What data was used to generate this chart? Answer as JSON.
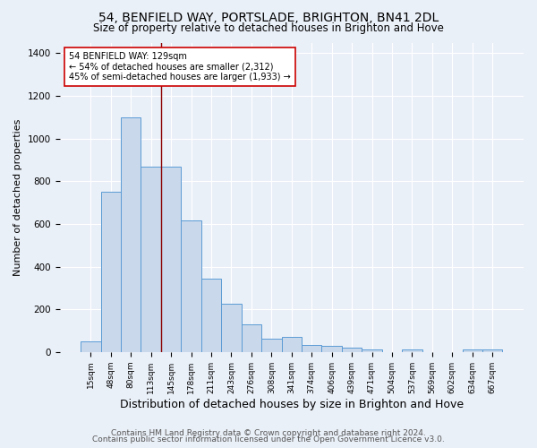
{
  "title1": "54, BENFIELD WAY, PORTSLADE, BRIGHTON, BN41 2DL",
  "title2": "Size of property relative to detached houses in Brighton and Hove",
  "xlabel": "Distribution of detached houses by size in Brighton and Hove",
  "ylabel": "Number of detached properties",
  "footer1": "Contains HM Land Registry data © Crown copyright and database right 2024.",
  "footer2": "Contains public sector information licensed under the Open Government Licence v3.0.",
  "bar_labels": [
    "15sqm",
    "48sqm",
    "80sqm",
    "113sqm",
    "145sqm",
    "178sqm",
    "211sqm",
    "243sqm",
    "276sqm",
    "308sqm",
    "341sqm",
    "374sqm",
    "406sqm",
    "439sqm",
    "471sqm",
    "504sqm",
    "537sqm",
    "569sqm",
    "602sqm",
    "634sqm",
    "667sqm"
  ],
  "bar_values": [
    50,
    750,
    1100,
    870,
    870,
    615,
    345,
    225,
    130,
    62,
    70,
    32,
    30,
    22,
    14,
    0,
    10,
    0,
    0,
    10,
    10
  ],
  "bar_color": "#c9d9eb",
  "bar_edge_color": "#5b9bd5",
  "vline_x": 3.5,
  "vline_color": "#8b0000",
  "annotation_text": "54 BENFIELD WAY: 129sqm\n← 54% of detached houses are smaller (2,312)\n45% of semi-detached houses are larger (1,933) →",
  "annotation_box_color": "#ffffff",
  "annotation_box_edge": "#cc0000",
  "ylim": [
    0,
    1450
  ],
  "yticks": [
    0,
    200,
    400,
    600,
    800,
    1000,
    1200,
    1400
  ],
  "bg_color": "#eaf0f8",
  "plot_bg_color": "#eaf0f8",
  "grid_color": "#ffffff",
  "title1_fontsize": 10,
  "title2_fontsize": 8.5,
  "xlabel_fontsize": 9,
  "ylabel_fontsize": 8,
  "footer_fontsize": 6.5
}
